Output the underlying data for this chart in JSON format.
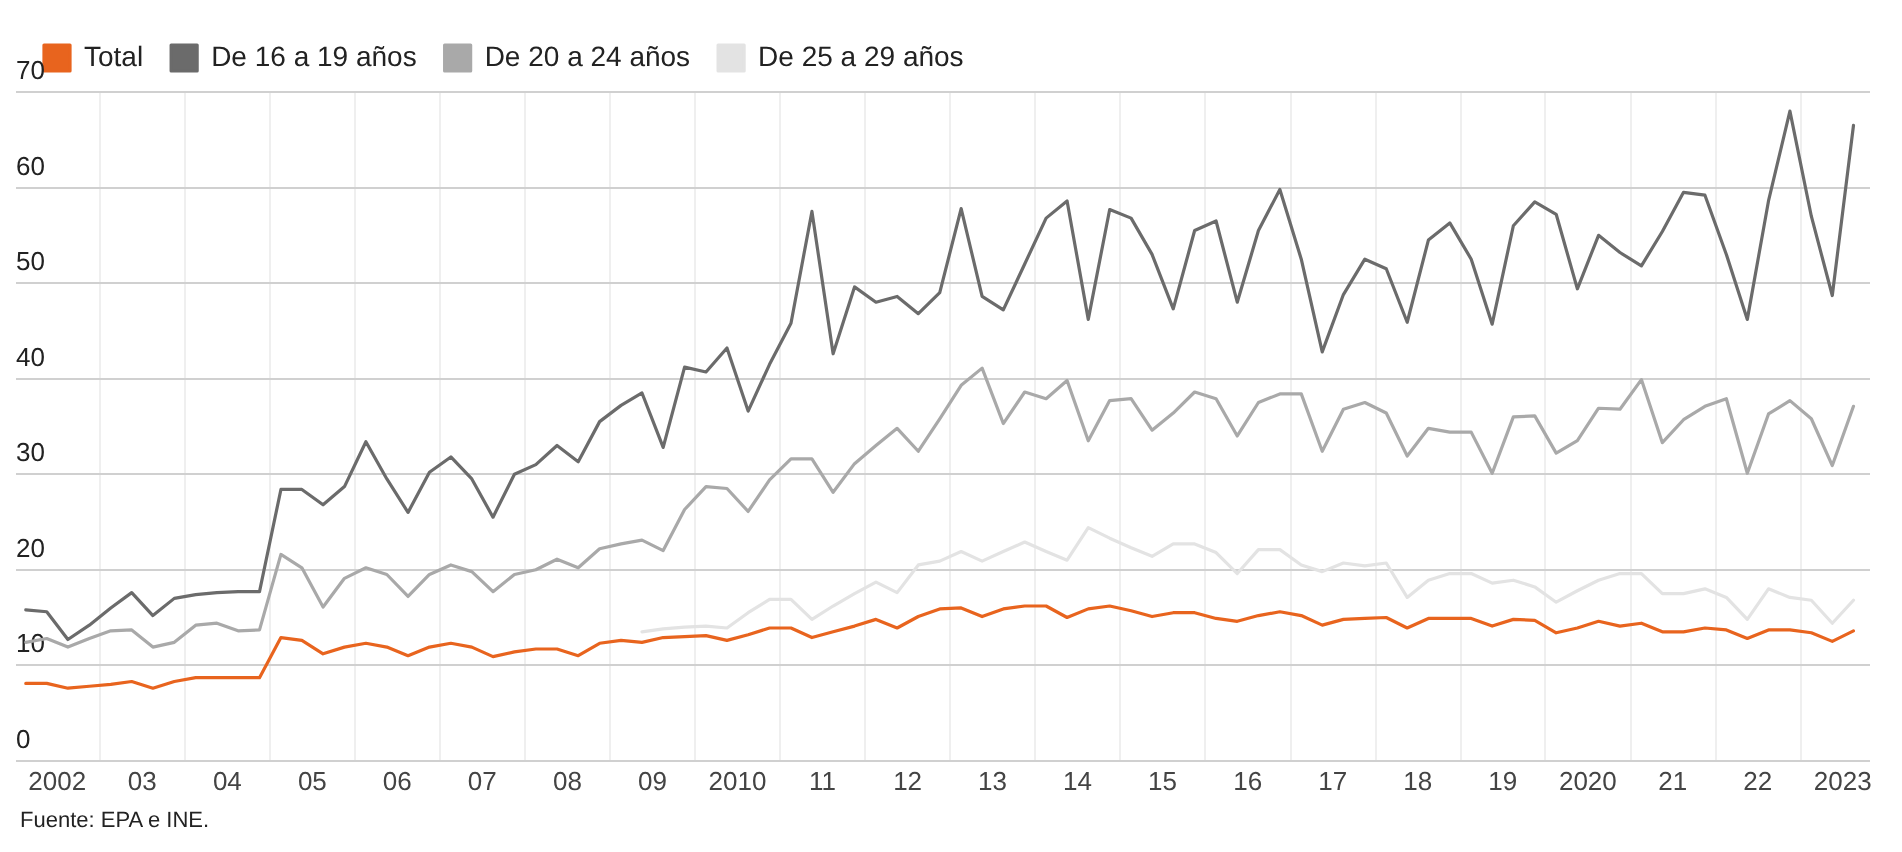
{
  "chart_data": {
    "type": "line",
    "legend": "top left",
    "grid": true,
    "marker": "none",
    "line_style": "solid",
    "annotations": [
      "Fuente: EPA e INE."
    ],
    "x": [
      "2002-01",
      "2002-04",
      "2002-07",
      "2002-10",
      "2003-01",
      "2003-04",
      "2003-07",
      "2003-10",
      "2004-01",
      "2004-04",
      "2004-07",
      "2004-10",
      "2005-01",
      "2005-04",
      "2005-07",
      "2005-10",
      "2006-01",
      "2006-04",
      "2006-07",
      "2006-10",
      "2007-01",
      "2007-04",
      "2007-07",
      "2007-10",
      "2008-01",
      "2008-04",
      "2008-07",
      "2008-10",
      "2009-01",
      "2009-04",
      "2009-07",
      "2009-10",
      "2010-01",
      "2010-04",
      "2010-07",
      "2010-10",
      "2011-01",
      "2011-04",
      "2011-07",
      "2011-10",
      "2012-01",
      "2012-04",
      "2012-07",
      "2012-10",
      "2013-01",
      "2013-04",
      "2013-07",
      "2013-10",
      "2014-01",
      "2014-04",
      "2014-07",
      "2014-10",
      "2015-01",
      "2015-04",
      "2015-07",
      "2015-10",
      "2016-01",
      "2016-04",
      "2016-07",
      "2016-10",
      "2017-01",
      "2017-04",
      "2017-07",
      "2017-10",
      "2018-01",
      "2018-04",
      "2018-07",
      "2018-10",
      "2019-01",
      "2019-04",
      "2019-07",
      "2019-10",
      "2020-01",
      "2020-04",
      "2020-07",
      "2020-10",
      "2021-01",
      "2021-04",
      "2021-07",
      "2021-10",
      "2022-01",
      "2022-04",
      "2022-07",
      "2022-10",
      "2023-01",
      "2023-04",
      "2023-07"
    ],
    "xlim": [
      "2001-11-20",
      "2023-09-10"
    ],
    "xticks": [
      {
        "value": "2002-05-16",
        "label": "2002"
      },
      {
        "value": "2002-11-16",
        "label": null
      },
      {
        "value": "2003-05-16",
        "label": "03"
      },
      {
        "value": "2003-11-16",
        "label": null
      },
      {
        "value": "2004-05-16",
        "label": "04"
      },
      {
        "value": "2004-11-16",
        "label": null
      },
      {
        "value": "2005-05-16",
        "label": "05"
      },
      {
        "value": "2005-11-16",
        "label": null
      },
      {
        "value": "2006-05-16",
        "label": "06"
      },
      {
        "value": "2006-11-16",
        "label": null
      },
      {
        "value": "2007-05-16",
        "label": "07"
      },
      {
        "value": "2007-11-16",
        "label": null
      },
      {
        "value": "2008-05-16",
        "label": "08"
      },
      {
        "value": "2008-11-16",
        "label": null
      },
      {
        "value": "2009-05-16",
        "label": "09"
      },
      {
        "value": "2009-11-16",
        "label": null
      },
      {
        "value": "2010-05-16",
        "label": "2010"
      },
      {
        "value": "2010-11-16",
        "label": null
      },
      {
        "value": "2011-05-16",
        "label": "11"
      },
      {
        "value": "2011-11-16",
        "label": null
      },
      {
        "value": "2012-05-16",
        "label": "12"
      },
      {
        "value": "2012-11-16",
        "label": null
      },
      {
        "value": "2013-05-16",
        "label": "13"
      },
      {
        "value": "2013-11-16",
        "label": null
      },
      {
        "value": "2014-05-16",
        "label": "14"
      },
      {
        "value": "2014-11-16",
        "label": null
      },
      {
        "value": "2015-05-16",
        "label": "15"
      },
      {
        "value": "2015-11-16",
        "label": null
      },
      {
        "value": "2016-05-16",
        "label": "16"
      },
      {
        "value": "2016-11-16",
        "label": null
      },
      {
        "value": "2017-05-16",
        "label": "17"
      },
      {
        "value": "2017-11-16",
        "label": null
      },
      {
        "value": "2018-05-16",
        "label": "18"
      },
      {
        "value": "2018-11-16",
        "label": null
      },
      {
        "value": "2019-05-16",
        "label": "19"
      },
      {
        "value": "2019-11-16",
        "label": null
      },
      {
        "value": "2020-05-16",
        "label": "2020"
      },
      {
        "value": "2020-11-16",
        "label": null
      },
      {
        "value": "2021-05-16",
        "label": "21"
      },
      {
        "value": "2021-11-16",
        "label": null
      },
      {
        "value": "2022-05-16",
        "label": "22"
      },
      {
        "value": "2022-11-16",
        "label": null
      },
      {
        "value": "2023-05-16",
        "label": "2023"
      }
    ],
    "ylim": [
      0,
      70
    ],
    "yticks": [
      0,
      10,
      20,
      30,
      40,
      50,
      60,
      70
    ],
    "series": [
      {
        "name": "Total",
        "color": "#e8641e",
        "values": [
          8.1,
          8.1,
          7.6,
          7.8,
          8,
          8.3,
          7.6,
          8.3,
          8.7,
          8.7,
          8.7,
          8.7,
          12.9,
          12.6,
          11.2,
          11.9,
          12.3,
          11.9,
          11,
          11.9,
          12.3,
          11.9,
          10.9,
          11.4,
          11.7,
          11.7,
          11,
          12.3,
          12.6,
          12.4,
          12.9,
          13.0,
          13.1,
          12.6,
          13.2,
          13.9,
          13.9,
          12.9,
          13.5,
          14.1,
          14.8,
          13.9,
          15.1,
          15.9,
          16,
          15.1,
          15.9,
          16.2,
          16.2,
          15,
          15.9,
          16.2,
          15.7,
          15.1,
          15.5,
          15.5,
          14.9,
          14.6,
          15.2,
          15.6,
          15.2,
          14.2,
          14.8,
          14.9,
          15,
          13.9,
          14.9,
          14.9,
          14.9,
          14.1,
          14.8,
          14.7,
          13.4,
          13.9,
          14.6,
          14.1,
          14.4,
          13.5,
          13.5,
          13.9,
          13.7,
          12.8,
          13.7,
          13.7,
          13.4,
          12.5,
          13.6
        ]
      },
      {
        "name": "De 16 a 19 años",
        "color": "#6b6b6b",
        "values": [
          15.8,
          15.6,
          12.7,
          14.2,
          16,
          17.6,
          15.2,
          17,
          17.4,
          17.6,
          17.7,
          17.7,
          28.4,
          28.4,
          26.8,
          28.7,
          33.4,
          29.5,
          26,
          30.2,
          31.8,
          29.5,
          25.5,
          30,
          31,
          33,
          31.3,
          35.5,
          37.2,
          38.5,
          32.8,
          41.2,
          40.7,
          43.2,
          36.6,
          41.5,
          45.8,
          57.5,
          42.6,
          49.6,
          48,
          48.6,
          46.8,
          49,
          57.8,
          48.6,
          47.2,
          52,
          56.8,
          58.6,
          46.2,
          57.7,
          56.8,
          53,
          47.3,
          55.5,
          56.5,
          48,
          55.5,
          59.8,
          52.5,
          42.8,
          48.8,
          52.5,
          51.5,
          45.9,
          54.5,
          56.3,
          52.5,
          45.7,
          56,
          58.5,
          57.2,
          49.4,
          55,
          53.2,
          51.8,
          55.4,
          59.5,
          59.2,
          53,
          46.2,
          58.6,
          68,
          57,
          48.7,
          66.5
        ]
      },
      {
        "name": "De 20 a 24 años",
        "color": "#a9a9a9",
        "values": [
          12.4,
          12.8,
          11.9,
          12.8,
          13.6,
          13.7,
          11.9,
          12.4,
          14.2,
          14.4,
          13.6,
          13.7,
          21.6,
          20.2,
          16.1,
          19.1,
          20.2,
          19.5,
          17.2,
          19.5,
          20.5,
          19.8,
          17.7,
          19.5,
          20,
          21.1,
          20.2,
          22.2,
          22.7,
          23.1,
          22,
          26.3,
          28.7,
          28.5,
          26.1,
          29.4,
          31.6,
          31.6,
          28.1,
          31.1,
          33,
          34.8,
          32.4,
          35.8,
          39.3,
          41.1,
          35.3,
          38.6,
          37.9,
          39.8,
          33.5,
          37.7,
          37.9,
          34.6,
          36.4,
          38.6,
          37.9,
          34,
          37.5,
          38.4,
          38.4,
          32.4,
          36.8,
          37.5,
          36.4,
          31.9,
          34.8,
          34.4,
          34.4,
          30.1,
          36,
          36.1,
          32.2,
          33.5,
          36.9,
          36.8,
          39.9,
          33.3,
          35.7,
          37.1,
          37.9,
          30.1,
          36.3,
          37.7,
          35.8,
          30.9,
          37.1
        ]
      },
      {
        "name": "De 25 a 29 años",
        "color": "#e3e3e3",
        "values": [
          null,
          null,
          null,
          null,
          null,
          null,
          null,
          null,
          null,
          null,
          null,
          null,
          null,
          null,
          null,
          null,
          null,
          null,
          null,
          null,
          null,
          null,
          null,
          null,
          null,
          null,
          null,
          null,
          null,
          13.5,
          13.8,
          14,
          14.1,
          13.9,
          15.5,
          16.9,
          16.9,
          14.8,
          16.2,
          17.5,
          18.7,
          17.6,
          20.5,
          20.9,
          21.9,
          20.9,
          21.9,
          22.9,
          21.9,
          21,
          24.4,
          23.3,
          22.3,
          21.4,
          22.7,
          22.7,
          21.8,
          19.6,
          22.1,
          22.1,
          20.5,
          19.8,
          20.7,
          20.4,
          20.7,
          17.1,
          18.9,
          19.6,
          19.6,
          18.6,
          18.9,
          18.2,
          16.6,
          17.8,
          18.9,
          19.6,
          19.6,
          17.5,
          17.5,
          18,
          17.1,
          14.8,
          18,
          17.1,
          16.8,
          14.4,
          16.8
        ]
      }
    ]
  }
}
